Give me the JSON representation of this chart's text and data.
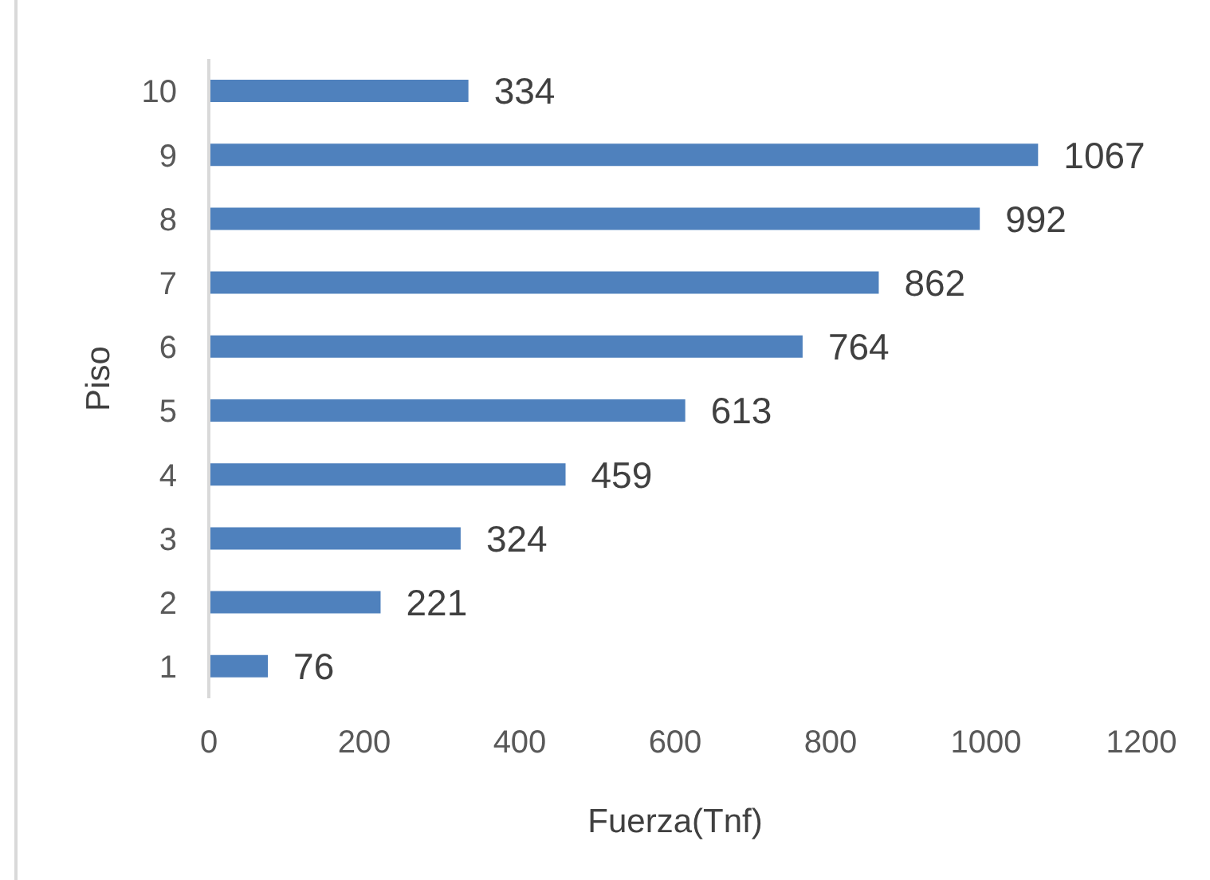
{
  "chart_data": {
    "type": "bar",
    "orientation": "horizontal",
    "categories": [
      "10",
      "9",
      "8",
      "7",
      "6",
      "5",
      "4",
      "3",
      "2",
      "1"
    ],
    "values": [
      334,
      1067,
      992,
      862,
      764,
      613,
      459,
      324,
      221,
      76
    ],
    "color": "#4f81bd",
    "xlabel": "Fuerza(Tnf)",
    "ylabel": "Piso",
    "xlim": [
      0,
      1200
    ],
    "xticks": [
      0,
      200,
      400,
      600,
      800,
      1000,
      1200
    ],
    "data_labels": true
  }
}
